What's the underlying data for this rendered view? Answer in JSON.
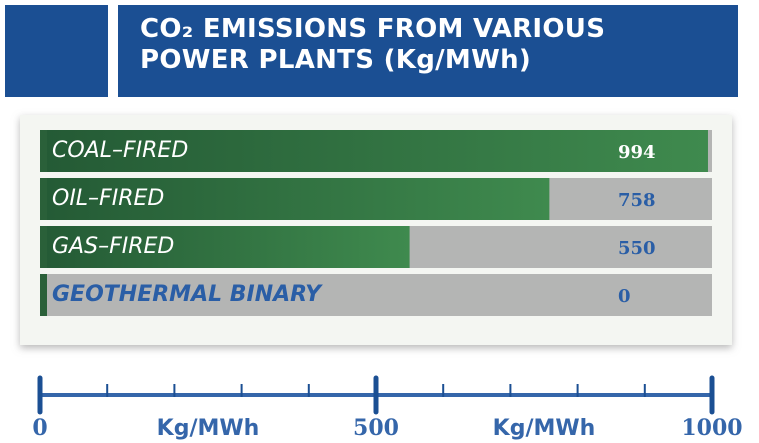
{
  "chart_data": {
    "type": "bar",
    "orientation": "horizontal",
    "title": "CO₂ EMISSIONS FROM VARIOUS POWER PLANTS (Kg/MWh)",
    "categories": [
      "COAL–FIRED",
      "OIL–FIRED",
      "GAS–FIRED",
      "GEOTHERMAL BINARY"
    ],
    "values": [
      994,
      758,
      550,
      0
    ],
    "color": "#2f6b3c",
    "xlim": [
      0,
      1000
    ],
    "xticks": [
      0,
      500,
      1000
    ],
    "xminorticks": [
      100,
      200,
      300,
      400,
      600,
      700,
      800,
      900
    ],
    "x_axis_labels": [
      "Kg/MWh",
      "Kg/MWh"
    ]
  }
}
